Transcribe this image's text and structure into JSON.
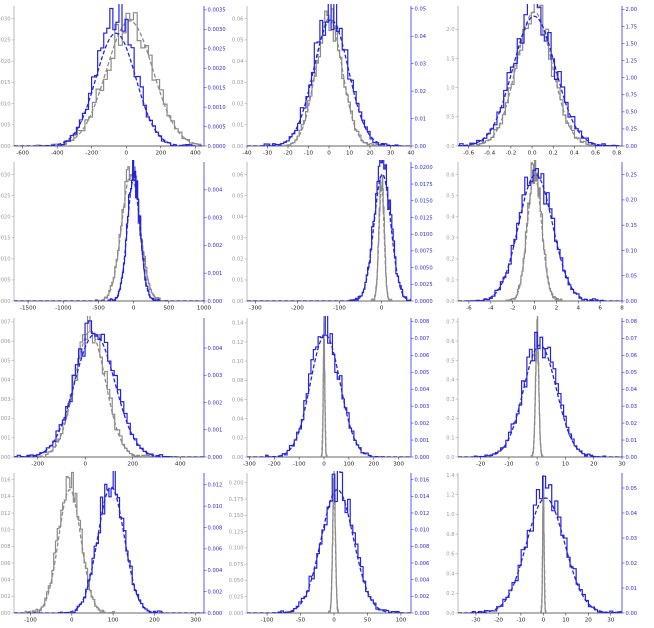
{
  "figure": {
    "colors": {
      "gray": "#8c8c8c",
      "blue": "#2424e0",
      "axis": "#333333",
      "axis_right": "#3535e6"
    }
  },
  "chart_data": [
    {
      "type": "line",
      "row": 1,
      "col": 1,
      "xlim": [
        -650,
        450
      ],
      "ylim_left": [
        0,
        0.0033
      ],
      "ylim_right": [
        0,
        0.0036
      ],
      "xticks": [
        "-600",
        "-400",
        "-200",
        "0",
        "200",
        "400"
      ],
      "xtick_values": [
        -600,
        -400,
        -200,
        0,
        200,
        400
      ],
      "yticks_left": [
        "0.0000",
        "0.0005",
        "0.0010",
        "0.0015",
        "0.0020",
        "0.0025",
        "0.0030"
      ],
      "ytick_left_values": [
        0,
        0.0005,
        0.001,
        0.0015,
        0.002,
        0.0025,
        0.003
      ],
      "yticks_right": [
        "0.0000",
        "0.0005",
        "0.0010",
        "0.0015",
        "0.0020",
        "0.0025",
        "0.0030",
        "0.0035"
      ],
      "ytick_right_values": [
        0,
        0.0005,
        0.001,
        0.0015,
        0.002,
        0.0025,
        0.003,
        0.0035
      ],
      "series": [
        {
          "axis": "left",
          "style": "fit",
          "mu": 20,
          "sigma": 135,
          "peak": 0.00295
        },
        {
          "axis": "left",
          "style": "hist",
          "mu": 20,
          "sigma": 135,
          "peak": 0.003
        },
        {
          "axis": "right",
          "style": "fit",
          "mu": -60,
          "sigma": 115,
          "peak": 0.0029
        },
        {
          "axis": "right",
          "style": "hist",
          "mu": -60,
          "sigma": 110,
          "peak": 0.00335
        }
      ]
    },
    {
      "type": "line",
      "row": 1,
      "col": 2,
      "xlim": [
        -40,
        40
      ],
      "ylim_left": [
        0,
        0.066
      ],
      "ylim_right": [
        0,
        0.051
      ],
      "xticks": [
        "-40",
        "-30",
        "-20",
        "-10",
        "0",
        "10",
        "20",
        "30",
        "40"
      ],
      "xtick_values": [
        -40,
        -30,
        -20,
        -10,
        0,
        10,
        20,
        30,
        40
      ],
      "yticks_left": [
        "0.00",
        "0.01",
        "0.02",
        "0.03",
        "0.04",
        "0.05",
        "0.06"
      ],
      "ytick_left_values": [
        0,
        0.01,
        0.02,
        0.03,
        0.04,
        0.05,
        0.06
      ],
      "yticks_right": [
        "0.00",
        "0.01",
        "0.02",
        "0.03",
        "0.04",
        "0.05"
      ],
      "ytick_right_values": [
        0,
        0.01,
        0.02,
        0.03,
        0.04,
        0.05
      ],
      "series": [
        {
          "axis": "left",
          "style": "fit",
          "mu": 0,
          "sigma": 6.5,
          "peak": 0.06
        },
        {
          "axis": "left",
          "style": "hist",
          "mu": 0,
          "sigma": 6.5,
          "peak": 0.062
        },
        {
          "axis": "right",
          "style": "fit",
          "mu": 1,
          "sigma": 8.5,
          "peak": 0.046
        },
        {
          "axis": "right",
          "style": "hist",
          "mu": 1,
          "sigma": 8.5,
          "peak": 0.049
        }
      ]
    },
    {
      "type": "line",
      "row": 1,
      "col": 3,
      "xlim": [
        -0.7,
        0.85
      ],
      "ylim_left": [
        0,
        2.4
      ],
      "ylim_right": [
        0,
        2.05
      ],
      "xticks": [
        "-0.6",
        "-0.4",
        "-0.2",
        "0.0",
        "0.2",
        "0.4",
        "0.6",
        "0.8"
      ],
      "xtick_values": [
        -0.6,
        -0.4,
        -0.2,
        0,
        0.2,
        0.4,
        0.6,
        0.8
      ],
      "yticks_left": [
        "0.0",
        "0.5",
        "1.0",
        "1.5",
        "2.0"
      ],
      "ytick_left_values": [
        0,
        0.5,
        1,
        1.5,
        2
      ],
      "yticks_right": [
        "0.00",
        "0.25",
        "0.50",
        "0.75",
        "1.00",
        "1.25",
        "1.50",
        "1.75",
        "2.00"
      ],
      "ytick_right_values": [
        0,
        0.25,
        0.5,
        0.75,
        1,
        1.25,
        1.5,
        1.75,
        2
      ],
      "series": [
        {
          "axis": "left",
          "style": "fit",
          "mu": 0.02,
          "sigma": 0.17,
          "peak": 2.3
        },
        {
          "axis": "left",
          "style": "hist",
          "mu": 0.02,
          "sigma": 0.17,
          "peak": 2.35
        },
        {
          "axis": "right",
          "style": "fit",
          "mu": 0.02,
          "sigma": 0.2,
          "peak": 1.9
        },
        {
          "axis": "right",
          "style": "hist",
          "mu": 0.02,
          "sigma": 0.2,
          "peak": 1.98
        }
      ]
    },
    {
      "type": "line",
      "row": 2,
      "col": 1,
      "xlim": [
        -1700,
        1000
      ],
      "ylim_left": [
        0,
        0.0033
      ],
      "ylim_right": [
        0,
        0.005
      ],
      "xticks": [
        "-1500",
        "-1000",
        "-500",
        "0",
        "500",
        "1000"
      ],
      "xtick_values": [
        -1500,
        -1000,
        -500,
        0,
        500,
        1000
      ],
      "yticks_left": [
        "0.0000",
        "0.0005",
        "0.0010",
        "0.0015",
        "0.0020",
        "0.0025",
        "0.0030"
      ],
      "ytick_left_values": [
        0,
        0.0005,
        0.001,
        0.0015,
        0.002,
        0.0025,
        0.003
      ],
      "yticks_right": [
        "0.000",
        "0.001",
        "0.002",
        "0.003",
        "0.004"
      ],
      "ytick_right_values": [
        0,
        0.001,
        0.002,
        0.003,
        0.004
      ],
      "series": [
        {
          "axis": "left",
          "style": "fit",
          "mu": -40,
          "sigma": 130,
          "peak": 0.003
        },
        {
          "axis": "left",
          "style": "hist",
          "mu": -40,
          "sigma": 130,
          "peak": 0.0031
        },
        {
          "axis": "right",
          "style": "fit",
          "mu": 0,
          "sigma": 90,
          "peak": 0.0044
        },
        {
          "axis": "right",
          "style": "hist",
          "mu": 0,
          "sigma": 90,
          "peak": 0.0047
        }
      ]
    },
    {
      "type": "line",
      "row": 2,
      "col": 2,
      "xlim": [
        -320,
        70
      ],
      "ylim_left": [
        0,
        0.066
      ],
      "ylim_right": [
        0,
        0.0208
      ],
      "xticks": [
        "-300",
        "-200",
        "-100",
        "0"
      ],
      "xtick_values": [
        -300,
        -200,
        -100,
        0
      ],
      "yticks_left": [
        "0.00",
        "0.01",
        "0.02",
        "0.03",
        "0.04",
        "0.05",
        "0.06"
      ],
      "ytick_left_values": [
        0,
        0.01,
        0.02,
        0.03,
        0.04,
        0.05,
        0.06
      ],
      "yticks_right": [
        "0.0000",
        "0.0025",
        "0.0050",
        "0.0075",
        "0.0100",
        "0.0125",
        "0.0150",
        "0.0175",
        "0.0200"
      ],
      "ytick_right_values": [
        0,
        0.0025,
        0.005,
        0.0075,
        0.01,
        0.0125,
        0.015,
        0.0175,
        0.02
      ],
      "series": [
        {
          "axis": "left",
          "style": "fit",
          "mu": 0,
          "sigma": 6,
          "peak": 0.055
        },
        {
          "axis": "left",
          "style": "hist",
          "mu": 0,
          "sigma": 6,
          "peak": 0.06
        },
        {
          "axis": "right",
          "style": "fit",
          "mu": 2,
          "sigma": 20,
          "peak": 0.019
        },
        {
          "axis": "right",
          "style": "hist",
          "mu": 2,
          "sigma": 20,
          "peak": 0.02
        }
      ]
    },
    {
      "type": "line",
      "row": 2,
      "col": 3,
      "xlim": [
        -7,
        8
      ],
      "ylim_left": [
        0,
        0.66
      ],
      "ylim_right": [
        0,
        0.275
      ],
      "xticks": [
        "-6",
        "-4",
        "-2",
        "0",
        "2",
        "4",
        "6",
        "8"
      ],
      "xtick_values": [
        -6,
        -4,
        -2,
        0,
        2,
        4,
        6,
        8
      ],
      "yticks_left": [
        "0.0",
        "0.1",
        "0.2",
        "0.3",
        "0.4",
        "0.5",
        "0.6"
      ],
      "ytick_left_values": [
        0,
        0.1,
        0.2,
        0.3,
        0.4,
        0.5,
        0.6
      ],
      "yticks_right": [
        "0.00",
        "0.05",
        "0.10",
        "0.15",
        "0.20",
        "0.25"
      ],
      "ytick_right_values": [
        0,
        0.05,
        0.1,
        0.15,
        0.2,
        0.25
      ],
      "series": [
        {
          "axis": "left",
          "style": "fit",
          "mu": 0,
          "sigma": 0.65,
          "peak": 0.6
        },
        {
          "axis": "left",
          "style": "hist",
          "mu": 0,
          "sigma": 0.65,
          "peak": 0.63
        },
        {
          "axis": "right",
          "style": "fit",
          "mu": 0.1,
          "sigma": 1.55,
          "peak": 0.25
        },
        {
          "axis": "right",
          "style": "hist",
          "mu": 0.1,
          "sigma": 1.55,
          "peak": 0.255
        }
      ]
    },
    {
      "type": "line",
      "row": 3,
      "col": 1,
      "xlim": [
        -300,
        500
      ],
      "ylim_left": [
        0,
        0.0072
      ],
      "ylim_right": [
        0,
        0.0051
      ],
      "xticks": [
        "-200",
        "0",
        "200",
        "400"
      ],
      "xtick_values": [
        -200,
        0,
        200,
        400
      ],
      "yticks_left": [
        "0.000",
        "0.001",
        "0.002",
        "0.003",
        "0.004",
        "0.005",
        "0.006",
        "0.007"
      ],
      "ytick_left_values": [
        0,
        0.001,
        0.002,
        0.003,
        0.004,
        0.005,
        0.006,
        0.007
      ],
      "yticks_right": [
        "0.000",
        "0.001",
        "0.002",
        "0.003",
        "0.004"
      ],
      "ytick_right_values": [
        0,
        0.001,
        0.002,
        0.003,
        0.004
      ],
      "series": [
        {
          "axis": "left",
          "style": "fit",
          "mu": 20,
          "sigma": 65,
          "peak": 0.0065
        },
        {
          "axis": "left",
          "style": "hist",
          "mu": 20,
          "sigma": 65,
          "peak": 0.0068
        },
        {
          "axis": "right",
          "style": "fit",
          "mu": 40,
          "sigma": 85,
          "peak": 0.0045
        },
        {
          "axis": "right",
          "style": "hist",
          "mu": 40,
          "sigma": 85,
          "peak": 0.0047
        }
      ]
    },
    {
      "type": "line",
      "row": 3,
      "col": 2,
      "xlim": [
        -310,
        350
      ],
      "ylim_left": [
        0,
        0.145
      ],
      "ylim_right": [
        0,
        0.0082
      ],
      "xticks": [
        "-300",
        "-200",
        "-100",
        "0",
        "100",
        "200",
        "300"
      ],
      "xtick_values": [
        -300,
        -200,
        -100,
        0,
        100,
        200,
        300
      ],
      "yticks_left": [
        "0.00",
        "0.02",
        "0.04",
        "0.06",
        "0.08",
        "0.10",
        "0.12",
        "0.14"
      ],
      "ytick_left_values": [
        0,
        0.02,
        0.04,
        0.06,
        0.08,
        0.1,
        0.12,
        0.14
      ],
      "yticks_right": [
        "0.000",
        "0.001",
        "0.002",
        "0.003",
        "0.004",
        "0.005",
        "0.006",
        "0.007",
        "0.008"
      ],
      "ytick_right_values": [
        0,
        0.001,
        0.002,
        0.003,
        0.004,
        0.005,
        0.006,
        0.007,
        0.008
      ],
      "series": [
        {
          "axis": "left",
          "style": "fit",
          "mu": 0,
          "sigma": 3,
          "peak": 0.13
        },
        {
          "axis": "left",
          "style": "hist",
          "mu": 0,
          "sigma": 3,
          "peak": 0.135
        },
        {
          "axis": "right",
          "style": "fit",
          "mu": 5,
          "sigma": 60,
          "peak": 0.0072
        },
        {
          "axis": "right",
          "style": "hist",
          "mu": 5,
          "sigma": 60,
          "peak": 0.0076
        }
      ]
    },
    {
      "type": "line",
      "row": 3,
      "col": 3,
      "xlim": [
        -28,
        30
      ],
      "ylim_left": [
        0,
        0.72
      ],
      "ylim_right": [
        0,
        0.082
      ],
      "xticks": [
        "-20",
        "-10",
        "0",
        "10",
        "20",
        "30"
      ],
      "xtick_values": [
        -20,
        -10,
        0,
        10,
        20,
        30
      ],
      "yticks_left": [
        "0.0",
        "0.1",
        "0.2",
        "0.3",
        "0.4",
        "0.5",
        "0.6",
        "0.7"
      ],
      "ytick_left_values": [
        0,
        0.1,
        0.2,
        0.3,
        0.4,
        0.5,
        0.6,
        0.7
      ],
      "yticks_right": [
        "0.00",
        "0.01",
        "0.02",
        "0.03",
        "0.04",
        "0.05",
        "0.06",
        "0.07",
        "0.08"
      ],
      "ytick_right_values": [
        0,
        0.01,
        0.02,
        0.03,
        0.04,
        0.05,
        0.06,
        0.07,
        0.08
      ],
      "series": [
        {
          "axis": "left",
          "style": "fit",
          "mu": 0,
          "sigma": 0.55,
          "peak": 0.64
        },
        {
          "axis": "left",
          "style": "hist",
          "mu": 0,
          "sigma": 0.55,
          "peak": 0.66
        },
        {
          "axis": "right",
          "style": "fit",
          "mu": 1,
          "sigma": 5.8,
          "peak": 0.066
        },
        {
          "axis": "right",
          "style": "hist",
          "mu": 1,
          "sigma": 5.8,
          "peak": 0.069
        }
      ]
    },
    {
      "type": "line",
      "row": 4,
      "col": 1,
      "xlim": [
        -140,
        320
      ],
      "ylim_left": [
        0,
        0.0168
      ],
      "ylim_right": [
        0,
        0.0131
      ],
      "xticks": [
        "-100",
        "0",
        "100",
        "200",
        "300"
      ],
      "xtick_values": [
        -100,
        0,
        100,
        200,
        300
      ],
      "yticks_left": [
        "0.000",
        "0.002",
        "0.004",
        "0.006",
        "0.008",
        "0.010",
        "0.012",
        "0.014",
        "0.016"
      ],
      "ytick_left_values": [
        0,
        0.002,
        0.004,
        0.006,
        0.008,
        0.01,
        0.012,
        0.014,
        0.016
      ],
      "yticks_right": [
        "0.000",
        "0.002",
        "0.004",
        "0.006",
        "0.008",
        "0.010",
        "0.012"
      ],
      "ytick_right_values": [
        0,
        0.002,
        0.004,
        0.006,
        0.008,
        0.01,
        0.012
      ],
      "series": [
        {
          "axis": "left",
          "style": "fit",
          "mu": -5,
          "sigma": 27,
          "peak": 0.0148
        },
        {
          "axis": "left",
          "style": "hist",
          "mu": -5,
          "sigma": 27,
          "peak": 0.0158
        },
        {
          "axis": "right",
          "style": "fit",
          "mu": 95,
          "sigma": 32,
          "peak": 0.0118
        },
        {
          "axis": "right",
          "style": "hist",
          "mu": 95,
          "sigma": 32,
          "peak": 0.0124
        }
      ]
    },
    {
      "type": "line",
      "row": 4,
      "col": 2,
      "xlim": [
        -130,
        115
      ],
      "ylim_left": [
        0,
        0.215
      ],
      "ylim_right": [
        0,
        0.0168
      ],
      "xticks": [
        "-100",
        "-50",
        "0",
        "50",
        "100"
      ],
      "xtick_values": [
        -100,
        -50,
        0,
        50,
        100
      ],
      "yticks_left": [
        "0.000",
        "0.025",
        "0.050",
        "0.075",
        "0.100",
        "0.125",
        "0.150",
        "0.175",
        "0.200"
      ],
      "ytick_left_values": [
        0,
        0.025,
        0.05,
        0.075,
        0.1,
        0.125,
        0.15,
        0.175,
        0.2
      ],
      "yticks_right": [
        "0.000",
        "0.002",
        "0.004",
        "0.006",
        "0.008",
        "0.010",
        "0.012",
        "0.014",
        "0.016"
      ],
      "ytick_right_values": [
        0,
        0.002,
        0.004,
        0.006,
        0.008,
        0.01,
        0.012,
        0.014,
        0.016
      ],
      "series": [
        {
          "axis": "left",
          "style": "fit",
          "mu": 0,
          "sigma": 2,
          "peak": 0.195
        },
        {
          "axis": "left",
          "style": "hist",
          "mu": 0,
          "sigma": 2,
          "peak": 0.205
        },
        {
          "axis": "right",
          "style": "fit",
          "mu": 5,
          "sigma": 24,
          "peak": 0.0148
        },
        {
          "axis": "right",
          "style": "hist",
          "mu": 5,
          "sigma": 24,
          "peak": 0.0156
        }
      ]
    },
    {
      "type": "line",
      "row": 4,
      "col": 3,
      "xlim": [
        -38,
        35
      ],
      "ylim_left": [
        0,
        1.42
      ],
      "ylim_right": [
        0,
        0.056
      ],
      "xticks": [
        "-30",
        "-20",
        "-10",
        "0",
        "10",
        "20",
        "30"
      ],
      "xtick_values": [
        -30,
        -20,
        -10,
        0,
        10,
        20,
        30
      ],
      "yticks_left": [
        "0.0",
        "0.2",
        "0.4",
        "0.6",
        "0.8",
        "1.0",
        "1.2",
        "1.4"
      ],
      "ytick_left_values": [
        0,
        0.2,
        0.4,
        0.6,
        0.8,
        1,
        1.2,
        1.4
      ],
      "yticks_right": [
        "0.00",
        "0.01",
        "0.02",
        "0.03",
        "0.04",
        "0.05"
      ],
      "ytick_right_values": [
        0,
        0.01,
        0.02,
        0.03,
        0.04,
        0.05
      ],
      "series": [
        {
          "axis": "left",
          "style": "fit",
          "mu": 0,
          "sigma": 0.3,
          "peak": 1.3
        },
        {
          "axis": "left",
          "style": "hist",
          "mu": 0,
          "sigma": 0.3,
          "peak": 1.34
        },
        {
          "axis": "right",
          "style": "fit",
          "mu": 1,
          "sigma": 8.5,
          "peak": 0.046
        },
        {
          "axis": "right",
          "style": "hist",
          "mu": 1,
          "sigma": 8.5,
          "peak": 0.049
        }
      ]
    }
  ]
}
